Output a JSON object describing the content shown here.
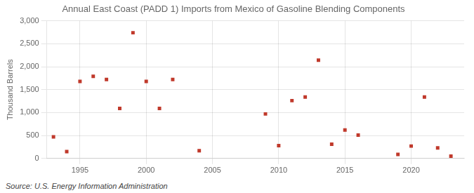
{
  "chart_data": {
    "type": "scatter",
    "title": "Annual East Coast (PADD 1) Imports from Mexico of Gasoline Blending Components",
    "ylabel": "Thousand Barrels",
    "source": "Source: U.S. Energy Information Administration",
    "x": [
      1993,
      1994,
      1995,
      1996,
      1997,
      1998,
      1999,
      2000,
      2001,
      2002,
      2004,
      2009,
      2010,
      2011,
      2012,
      2013,
      2014,
      2015,
      2016,
      2019,
      2020,
      2021,
      2022,
      2023
    ],
    "values": [
      470,
      150,
      1680,
      1790,
      1720,
      1090,
      2740,
      1680,
      1090,
      1720,
      170,
      970,
      280,
      1260,
      1340,
      2140,
      310,
      620,
      510,
      90,
      270,
      1340,
      230,
      50
    ],
    "color": "#c0392b",
    "marker": "square",
    "xlim": [
      1992.5,
      2024
    ],
    "xticks": [
      1995,
      2000,
      2005,
      2010,
      2015,
      2020
    ],
    "ylim": [
      0,
      3000
    ],
    "yticks": [
      0,
      500,
      {
        "value": 1000,
        "label": "1,000"
      },
      {
        "value": 1500,
        "label": "1,500"
      },
      {
        "value": 2000,
        "label": "2,000"
      },
      {
        "value": 2500,
        "label": "2,500"
      },
      {
        "value": 3000,
        "label": "3,000"
      }
    ],
    "grid": true
  }
}
